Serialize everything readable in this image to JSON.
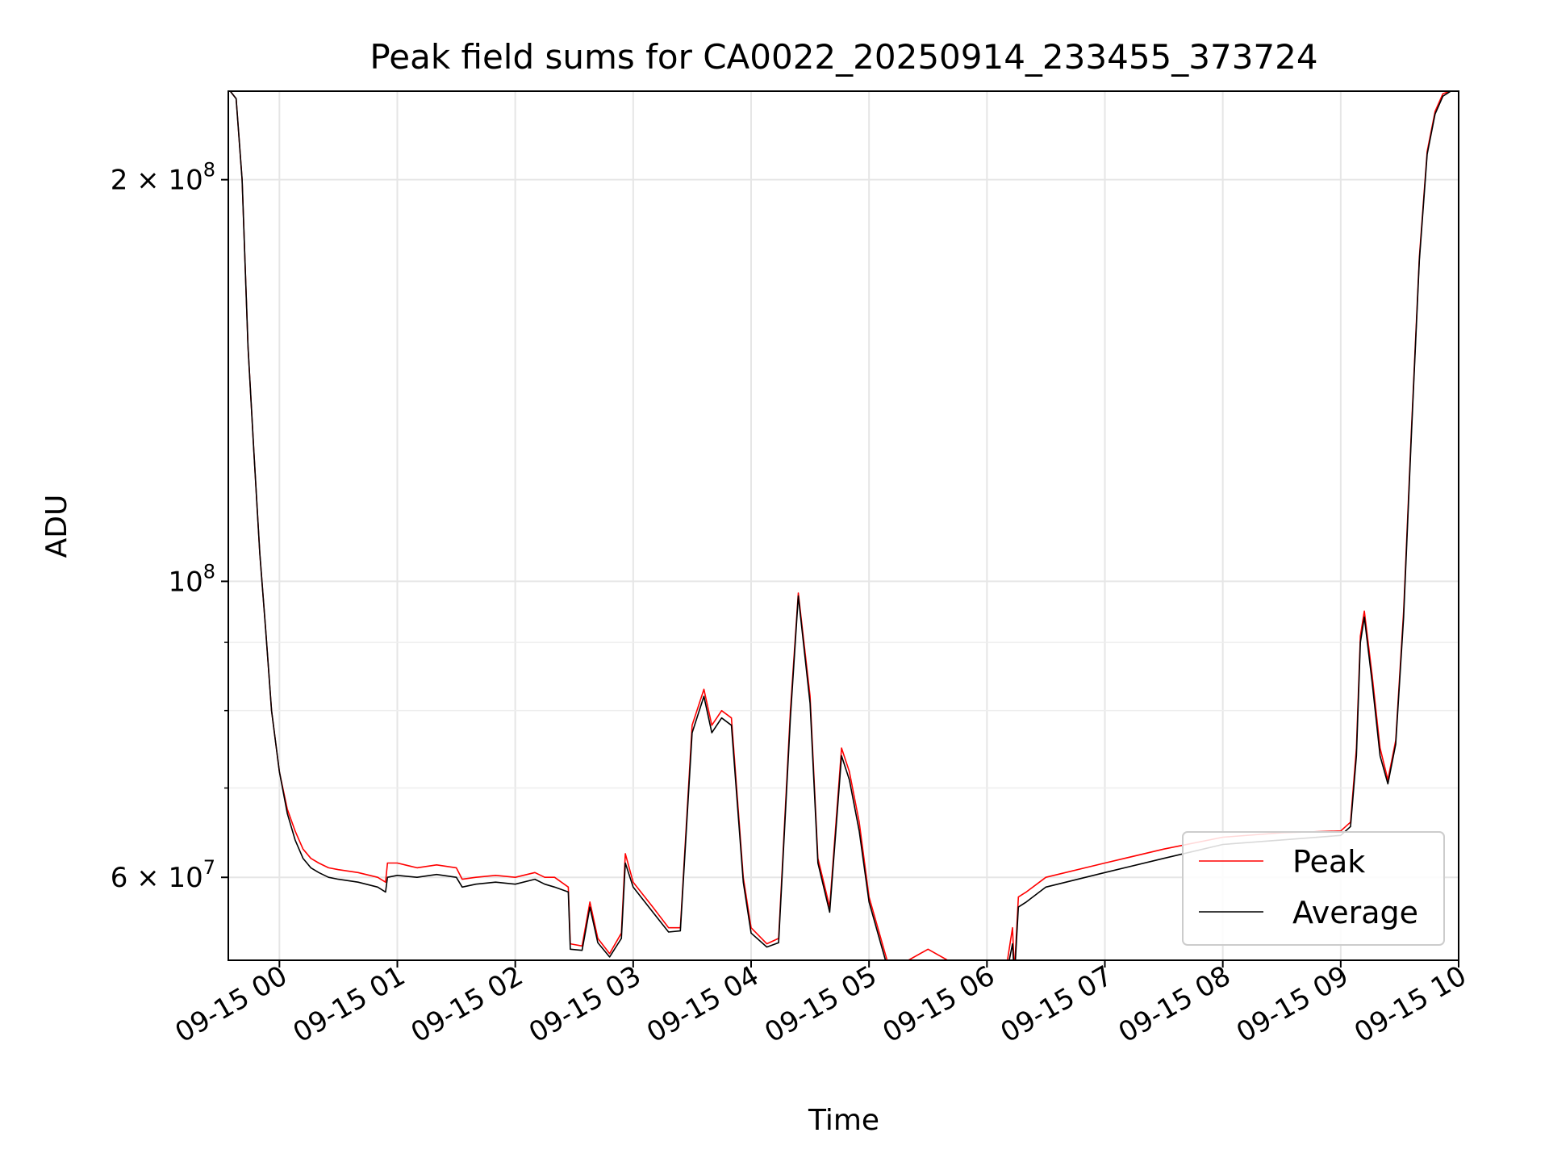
{
  "chart_data": {
    "type": "line",
    "title": "Peak field sums for CA0022_20250914_233455_373724",
    "xlabel": "Time",
    "ylabel": "ADU",
    "y_scale": "log",
    "grid": true,
    "legend_position": "lower-right",
    "x_tick_labels": [
      "09-15 00",
      "09-15 01",
      "09-15 02",
      "09-15 03",
      "09-15 04",
      "09-15 05",
      "09-15 06",
      "09-15 07",
      "09-15 08",
      "09-15 09",
      "09-15 10"
    ],
    "x_tick_values": [
      "2025-09-15 00:00",
      "2025-09-15 01:00",
      "2025-09-15 02:00",
      "2025-09-15 03:00",
      "2025-09-15 04:00",
      "2025-09-15 05:00",
      "2025-09-15 06:00",
      "2025-09-15 07:00",
      "2025-09-15 08:00",
      "2025-09-15 09:00",
      "2025-09-15 10:00"
    ],
    "xlim": [
      "2025-09-14 23:34",
      "2025-09-15 10:00"
    ],
    "ylim": [
      52000000,
      233000000
    ],
    "y_major_ticks": [
      {
        "value": 60000000,
        "mantissa": "6",
        "exponent": "7"
      },
      {
        "value": 100000000,
        "mantissa": "",
        "exponent": "8"
      },
      {
        "value": 200000000,
        "mantissa": "2",
        "exponent": "8"
      }
    ],
    "y_minor_ticks": [
      50000000,
      70000000,
      80000000,
      90000000,
      300000000
    ],
    "series": [
      {
        "name": "Peak",
        "color": "#ff0000",
        "x": [
          "2025-09-14 23:35",
          "2025-09-14 23:38",
          "2025-09-14 23:41",
          "2025-09-14 23:44",
          "2025-09-14 23:47",
          "2025-09-14 23:50",
          "2025-09-14 23:53",
          "2025-09-14 23:56",
          "2025-09-15 00:00",
          "2025-09-15 00:04",
          "2025-09-15 00:08",
          "2025-09-15 00:12",
          "2025-09-15 00:16",
          "2025-09-15 00:20",
          "2025-09-15 00:25",
          "2025-09-15 00:30",
          "2025-09-15 00:40",
          "2025-09-15 00:50",
          "2025-09-15 00:54",
          "2025-09-15 00:55",
          "2025-09-15 01:00",
          "2025-09-15 01:10",
          "2025-09-15 01:20",
          "2025-09-15 01:30",
          "2025-09-15 01:33",
          "2025-09-15 01:40",
          "2025-09-15 01:50",
          "2025-09-15 02:00",
          "2025-09-15 02:10",
          "2025-09-15 02:15",
          "2025-09-15 02:20",
          "2025-09-15 02:27",
          "2025-09-15 02:28",
          "2025-09-15 02:34",
          "2025-09-15 02:38",
          "2025-09-15 02:42",
          "2025-09-15 02:48",
          "2025-09-15 02:54",
          "2025-09-15 02:56",
          "2025-09-15 03:00",
          "2025-09-15 03:10",
          "2025-09-15 03:18",
          "2025-09-15 03:24",
          "2025-09-15 03:30",
          "2025-09-15 03:36",
          "2025-09-15 03:40",
          "2025-09-15 03:45",
          "2025-09-15 03:50",
          "2025-09-15 03:56",
          "2025-09-15 04:00",
          "2025-09-15 04:08",
          "2025-09-15 04:14",
          "2025-09-15 04:20",
          "2025-09-15 04:24",
          "2025-09-15 04:30",
          "2025-09-15 04:34",
          "2025-09-15 04:40",
          "2025-09-15 04:46",
          "2025-09-15 04:50",
          "2025-09-15 04:55",
          "2025-09-15 05:00",
          "2025-09-15 05:06",
          "2025-09-15 05:10",
          "2025-09-15 05:20",
          "2025-09-15 05:30",
          "2025-09-15 05:40",
          "2025-09-15 05:50",
          "2025-09-15 06:00",
          "2025-09-15 06:10",
          "2025-09-15 06:13",
          "2025-09-15 06:14",
          "2025-09-15 06:16",
          "2025-09-15 06:20",
          "2025-09-15 06:30",
          "2025-09-15 07:00",
          "2025-09-15 07:30",
          "2025-09-15 08:00",
          "2025-09-15 08:30",
          "2025-09-15 09:00",
          "2025-09-15 09:05",
          "2025-09-15 09:08",
          "2025-09-15 09:10",
          "2025-09-15 09:12",
          "2025-09-15 09:16",
          "2025-09-15 09:20",
          "2025-09-15 09:24",
          "2025-09-15 09:28",
          "2025-09-15 09:32",
          "2025-09-15 09:36",
          "2025-09-15 09:40",
          "2025-09-15 09:44",
          "2025-09-15 09:48",
          "2025-09-15 09:52",
          "2025-09-15 09:56",
          "2025-09-15 09:59"
        ],
        "y": [
          233000000,
          230000000,
          200000000,
          150000000,
          125000000,
          105000000,
          92000000,
          80000000,
          72000000,
          67500000,
          65000000,
          63000000,
          62000000,
          61500000,
          61000000,
          60800000,
          60500000,
          60000000,
          59500000,
          61500000,
          61500000,
          61000000,
          61300000,
          61000000,
          59800000,
          60000000,
          60200000,
          60000000,
          60500000,
          60000000,
          60000000,
          59000000,
          53500000,
          53300000,
          57500000,
          54000000,
          52600000,
          54500000,
          62500000,
          59500000,
          57000000,
          55000000,
          55000000,
          78000000,
          83000000,
          78000000,
          80000000,
          79000000,
          60000000,
          55000000,
          53500000,
          54000000,
          80000000,
          98000000,
          82000000,
          62000000,
          57000000,
          75000000,
          72000000,
          66000000,
          58000000,
          54000000,
          51500000,
          52000000,
          53000000,
          52000000,
          51500000,
          51000000,
          51500000,
          55000000,
          51000000,
          58000000,
          58500000,
          60000000,
          61500000,
          63000000,
          64300000,
          64800000,
          65000000,
          66000000,
          75000000,
          91000000,
          95000000,
          85000000,
          75000000,
          71000000,
          76000000,
          95000000,
          130000000,
          175000000,
          210000000,
          225000000,
          232000000,
          233000000,
          233000000
        ]
      },
      {
        "name": "Average",
        "color": "#000000",
        "x": [
          "2025-09-14 23:35",
          "2025-09-14 23:38",
          "2025-09-14 23:41",
          "2025-09-14 23:44",
          "2025-09-14 23:47",
          "2025-09-14 23:50",
          "2025-09-14 23:53",
          "2025-09-14 23:56",
          "2025-09-15 00:00",
          "2025-09-15 00:04",
          "2025-09-15 00:08",
          "2025-09-15 00:12",
          "2025-09-15 00:16",
          "2025-09-15 00:20",
          "2025-09-15 00:25",
          "2025-09-15 00:30",
          "2025-09-15 00:40",
          "2025-09-15 00:50",
          "2025-09-15 00:54",
          "2025-09-15 00:55",
          "2025-09-15 01:00",
          "2025-09-15 01:10",
          "2025-09-15 01:20",
          "2025-09-15 01:30",
          "2025-09-15 01:33",
          "2025-09-15 01:40",
          "2025-09-15 01:50",
          "2025-09-15 02:00",
          "2025-09-15 02:10",
          "2025-09-15 02:15",
          "2025-09-15 02:20",
          "2025-09-15 02:27",
          "2025-09-15 02:28",
          "2025-09-15 02:34",
          "2025-09-15 02:38",
          "2025-09-15 02:42",
          "2025-09-15 02:48",
          "2025-09-15 02:54",
          "2025-09-15 02:56",
          "2025-09-15 03:00",
          "2025-09-15 03:10",
          "2025-09-15 03:18",
          "2025-09-15 03:24",
          "2025-09-15 03:30",
          "2025-09-15 03:36",
          "2025-09-15 03:40",
          "2025-09-15 03:45",
          "2025-09-15 03:50",
          "2025-09-15 03:56",
          "2025-09-15 04:00",
          "2025-09-15 04:08",
          "2025-09-15 04:14",
          "2025-09-15 04:20",
          "2025-09-15 04:24",
          "2025-09-15 04:30",
          "2025-09-15 04:34",
          "2025-09-15 04:40",
          "2025-09-15 04:46",
          "2025-09-15 04:50",
          "2025-09-15 04:55",
          "2025-09-15 05:00",
          "2025-09-15 05:06",
          "2025-09-15 05:10",
          "2025-09-15 05:20",
          "2025-09-15 05:30",
          "2025-09-15 05:40",
          "2025-09-15 05:50",
          "2025-09-15 06:00",
          "2025-09-15 06:10",
          "2025-09-15 06:13",
          "2025-09-15 06:14",
          "2025-09-15 06:16",
          "2025-09-15 06:20",
          "2025-09-15 06:30",
          "2025-09-15 07:00",
          "2025-09-15 07:30",
          "2025-09-15 08:00",
          "2025-09-15 08:30",
          "2025-09-15 09:00",
          "2025-09-15 09:05",
          "2025-09-15 09:08",
          "2025-09-15 09:10",
          "2025-09-15 09:12",
          "2025-09-15 09:16",
          "2025-09-15 09:20",
          "2025-09-15 09:24",
          "2025-09-15 09:28",
          "2025-09-15 09:32",
          "2025-09-15 09:36",
          "2025-09-15 09:40",
          "2025-09-15 09:44",
          "2025-09-15 09:48",
          "2025-09-15 09:52",
          "2025-09-15 09:56",
          "2025-09-15 09:59"
        ],
        "y": [
          233000000,
          230000000,
          200000000,
          150000000,
          125000000,
          105000000,
          92000000,
          80000000,
          72000000,
          67000000,
          64000000,
          62000000,
          61000000,
          60500000,
          60000000,
          59800000,
          59500000,
          59000000,
          58500000,
          60000000,
          60200000,
          60000000,
          60300000,
          60000000,
          59000000,
          59300000,
          59500000,
          59300000,
          59800000,
          59300000,
          59000000,
          58500000,
          53000000,
          52900000,
          57000000,
          53600000,
          52300000,
          54000000,
          61500000,
          59000000,
          56500000,
          54600000,
          54700000,
          77000000,
          82000000,
          77000000,
          79000000,
          78000000,
          59500000,
          54500000,
          53200000,
          53600000,
          79000000,
          97500000,
          81000000,
          61500000,
          56500000,
          74000000,
          71000000,
          65000000,
          57500000,
          53500000,
          51000000,
          51300000,
          51800000,
          51200000,
          50800000,
          50400000,
          50800000,
          53500000,
          50500000,
          57000000,
          57500000,
          59000000,
          60500000,
          62000000,
          63500000,
          64000000,
          64500000,
          65500000,
          74000000,
          90000000,
          94000000,
          84000000,
          74000000,
          70500000,
          75500000,
          94000000,
          129000000,
          174000000,
          209000000,
          224000000,
          231000000,
          233000000,
          233000000
        ]
      }
    ]
  }
}
